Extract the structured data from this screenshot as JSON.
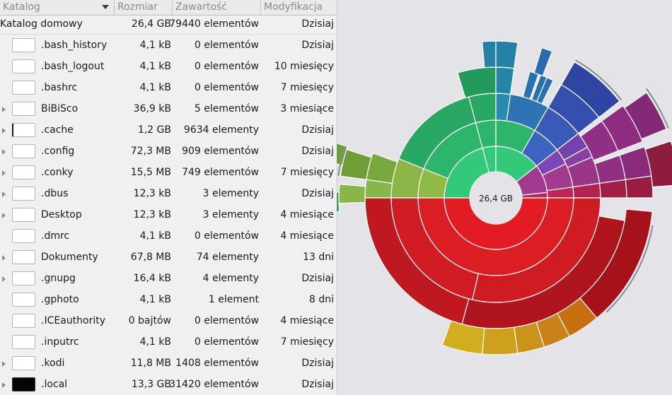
{
  "columns": {
    "name": "Katalog",
    "size": "Rozmiar",
    "contents": "Zawartość",
    "modified": "Modyfikacja"
  },
  "home_row": {
    "name": "Katalog domowy",
    "size": "26,4 GB",
    "contents": "79440 elementów",
    "modified": "Dzisiaj"
  },
  "rows": [
    {
      "name": ".bash_history",
      "size": "4,1 kB",
      "contents": "0 elementów",
      "modified": "Dzisiaj",
      "expandable": false,
      "icon": "file-icon"
    },
    {
      "name": ".bash_logout",
      "size": "4,1 kB",
      "contents": "0 elementów",
      "modified": "10 miesięcy",
      "expandable": false,
      "icon": "file-icon"
    },
    {
      "name": ".bashrc",
      "size": "4,1 kB",
      "contents": "0 elementów",
      "modified": "7 miesięcy",
      "expandable": false,
      "icon": "file-icon"
    },
    {
      "name": "BiBiSco",
      "size": "36,9 kB",
      "contents": "5 elementów",
      "modified": "3 miesiące",
      "expandable": true,
      "icon": "folder-icon"
    },
    {
      "name": ".cache",
      "size": "1,2 GB",
      "contents": "9634 elementy",
      "modified": "Dzisiaj",
      "expandable": true,
      "icon": "folder-icon"
    },
    {
      "name": ".config",
      "size": "72,3 MB",
      "contents": "909 elementów",
      "modified": "Dzisiaj",
      "expandable": true,
      "icon": "folder-icon"
    },
    {
      "name": ".conky",
      "size": "15,5 MB",
      "contents": "749 elementów",
      "modified": "7 miesięcy",
      "expandable": true,
      "icon": "folder-icon"
    },
    {
      "name": ".dbus",
      "size": "12,3 kB",
      "contents": "3 elementy",
      "modified": "Dzisiaj",
      "expandable": true,
      "icon": "folder-icon"
    },
    {
      "name": "Desktop",
      "size": "12,3 kB",
      "contents": "3 elementy",
      "modified": "4 miesiące",
      "expandable": true,
      "icon": "folder-icon"
    },
    {
      "name": ".dmrc",
      "size": "4,1 kB",
      "contents": "0 elementów",
      "modified": "4 miesiące",
      "expandable": false,
      "icon": "file-icon"
    },
    {
      "name": "Dokumenty",
      "size": "67,8 MB",
      "contents": "74 elementy",
      "modified": "13 dni",
      "expandable": true,
      "icon": "folder-icon"
    },
    {
      "name": ".gnupg",
      "size": "16,4 kB",
      "contents": "4 elementy",
      "modified": "Dzisiaj",
      "expandable": true,
      "icon": "folder-icon"
    },
    {
      "name": ".gphoto",
      "size": "4,1 kB",
      "contents": "1 element",
      "modified": "8 dni",
      "expandable": false,
      "icon": "folder-icon"
    },
    {
      "name": ".ICEauthority",
      "size": "0 bajtów",
      "contents": "0 elementów",
      "modified": "4 miesiące",
      "expandable": false,
      "icon": "file-icon"
    },
    {
      "name": ".inputrc",
      "size": "4,1 kB",
      "contents": "0 elementów",
      "modified": "7 miesięcy",
      "expandable": false,
      "icon": "file-icon"
    },
    {
      "name": ".kodi",
      "size": "11,8 MB",
      "contents": "1408 elementów",
      "modified": "Dzisiaj",
      "expandable": true,
      "icon": "folder-icon"
    },
    {
      "name": ".local",
      "size": "13,3 GB",
      "contents": "31420 elementów",
      "modified": "Dzisiaj",
      "expandable": true,
      "icon": "folder-icon"
    }
  ],
  "chart": {
    "center_label": "26,4 GB"
  }
}
